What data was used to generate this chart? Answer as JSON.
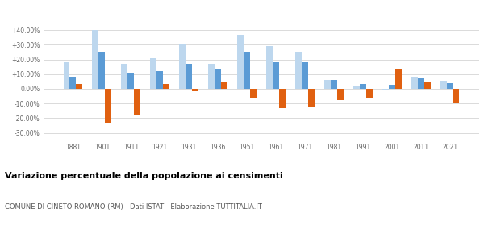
{
  "years": [
    1881,
    1901,
    1911,
    1921,
    1931,
    1936,
    1951,
    1961,
    1971,
    1981,
    1991,
    2001,
    2011,
    2021
  ],
  "cineto_romano": [
    3.0,
    -23.5,
    -18.0,
    3.0,
    -1.5,
    5.0,
    -6.0,
    -13.0,
    -12.0,
    -8.0,
    -6.5,
    13.5,
    5.0,
    -10.0
  ],
  "provincia_rm": [
    18.0,
    40.0,
    17.0,
    21.0,
    30.0,
    17.0,
    37.0,
    29.0,
    25.0,
    6.0,
    2.0,
    -1.0,
    8.0,
    5.5
  ],
  "lazio": [
    7.5,
    25.0,
    11.0,
    12.0,
    17.0,
    13.0,
    25.0,
    18.0,
    18.0,
    6.0,
    3.0,
    2.5,
    7.0,
    4.0
  ],
  "color_cineto": "#e06010",
  "color_provincia": "#bdd7ee",
  "color_lazio": "#5b9bd5",
  "title": "Variazione percentuale della popolazione ai censimenti",
  "subtitle": "COMUNE DI CINETO ROMANO (RM) - Dati ISTAT - Elaborazione TUTTITALIA.IT",
  "ylim": [
    -35,
    45
  ],
  "yticks": [
    -30,
    -20,
    -10,
    0,
    10,
    20,
    30,
    40
  ],
  "ytick_labels": [
    "-30.00%",
    "-20.00%",
    "-10.00%",
    "0.00%",
    "+10.00%",
    "+20.00%",
    "+30.00%",
    "+40.00%"
  ]
}
